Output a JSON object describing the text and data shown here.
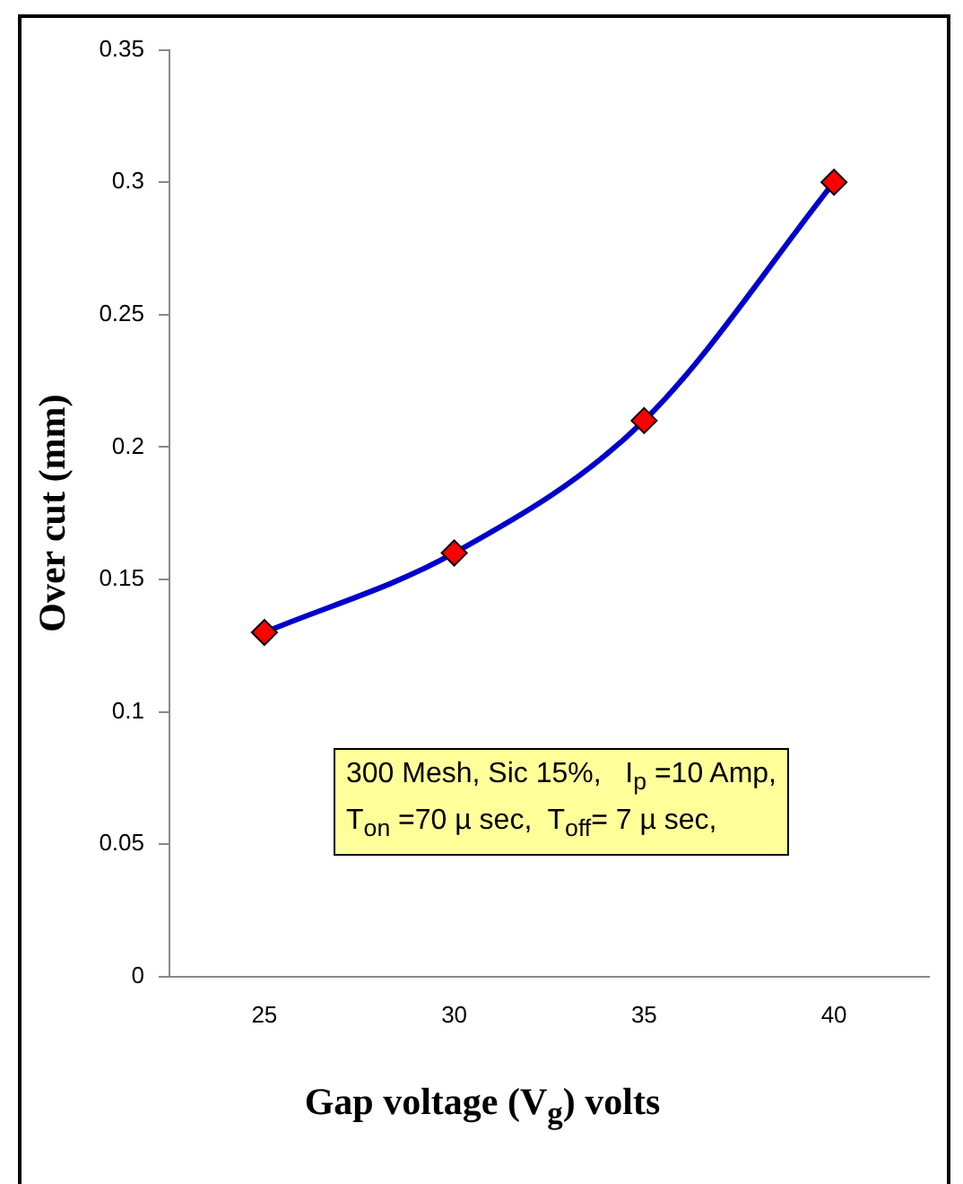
{
  "chart_data": {
    "type": "line",
    "xlabel": "Gap voltage (V$_{g}$) volts",
    "ylabel": "Over cut (mm)",
    "categories": [
      "25",
      "30",
      "35",
      "40"
    ],
    "series": [
      {
        "color": "#0000cc",
        "colors": [
          "#ff0000",
          "#ff0000",
          "#ff0000",
          "#ff0000"
        ],
        "values": [
          0.13,
          0.16,
          0.21,
          0.3
        ]
      }
    ],
    "ylim": [
      0,
      0.35
    ],
    "yticks": [
      0,
      0.05,
      0.1,
      0.15,
      0.2,
      0.25,
      0.3,
      0.35
    ],
    "marker": "diamond",
    "line_style": "solid",
    "grid": false,
    "legend": false,
    "annotations": [
      "300 Mesh, Sic 15%,   I$_{p}$ =10 Amp,",
      "T$_{on}$ =70 µ sec,  T$_{off}$= 7 µ sec,"
    ]
  }
}
